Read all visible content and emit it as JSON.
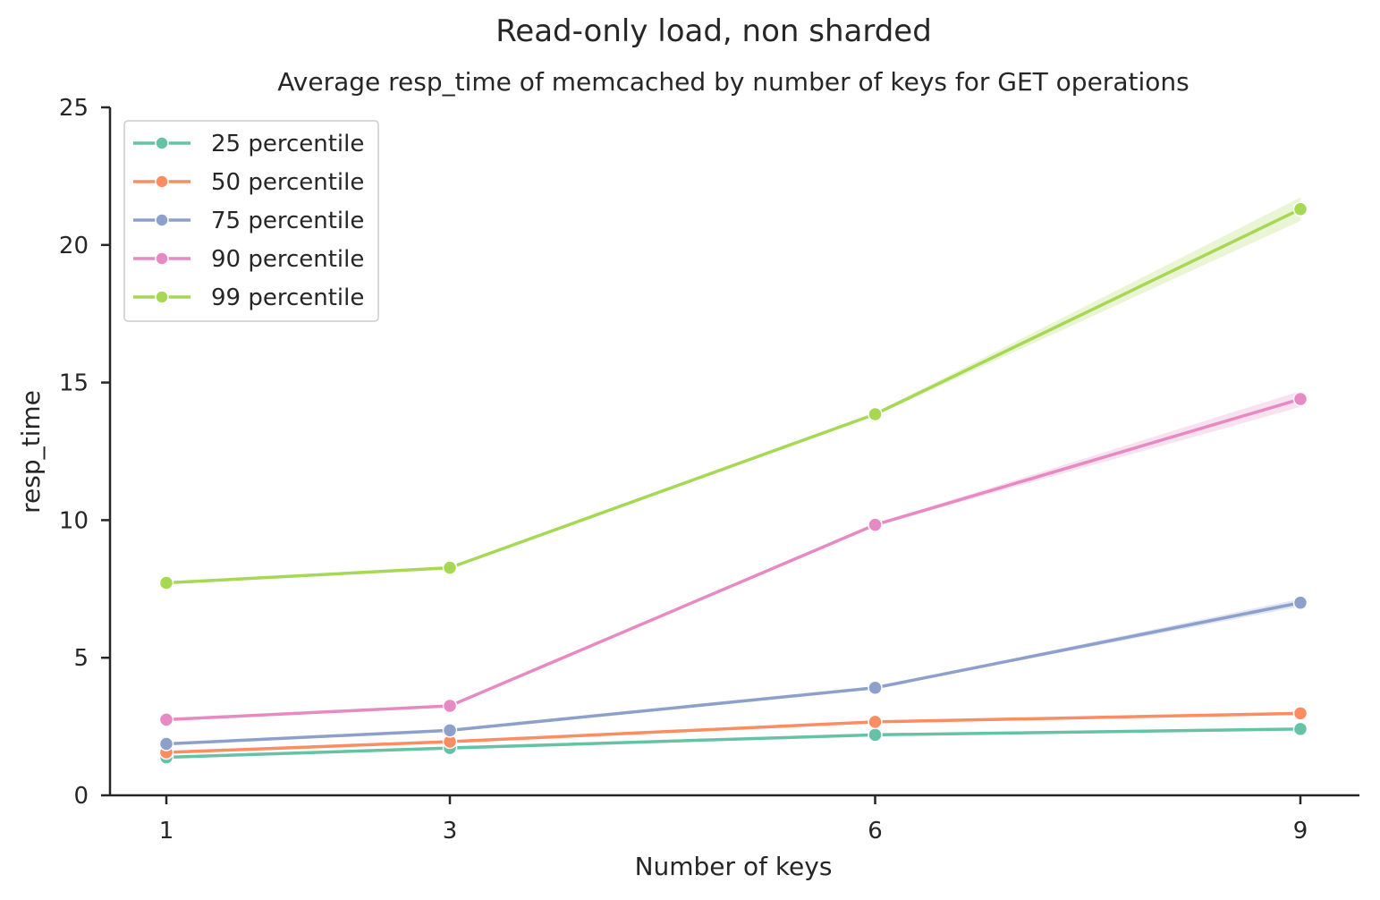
{
  "chart_data": {
    "type": "line",
    "title": "Read-only load, non sharded",
    "subtitle": "Average resp_time of memcached by number of keys for GET operations",
    "xlabel": "Number of keys",
    "ylabel": "resp_time",
    "x": [
      1,
      3,
      6,
      9
    ],
    "xticks": [
      "1",
      "3",
      "6",
      "9"
    ],
    "ylim": [
      0,
      25
    ],
    "yticks": [
      "0",
      "5",
      "10",
      "15",
      "20",
      "25"
    ],
    "grid": false,
    "legend_position": "top-left",
    "series": [
      {
        "name": "25 percentile",
        "color": "#66c2a5",
        "values": [
          1.38,
          1.72,
          2.2,
          2.41
        ]
      },
      {
        "name": "50 percentile",
        "color": "#fc8d62",
        "values": [
          1.56,
          1.95,
          2.67,
          2.98
        ]
      },
      {
        "name": "75 percentile",
        "color": "#8da0cb",
        "values": [
          1.87,
          2.36,
          3.91,
          7.0
        ]
      },
      {
        "name": "90 percentile",
        "color": "#e78ac3",
        "values": [
          2.75,
          3.25,
          9.83,
          14.4
        ]
      },
      {
        "name": "99 percentile",
        "color": "#a6d854",
        "values": [
          7.72,
          8.27,
          13.85,
          21.3
        ]
      }
    ]
  }
}
